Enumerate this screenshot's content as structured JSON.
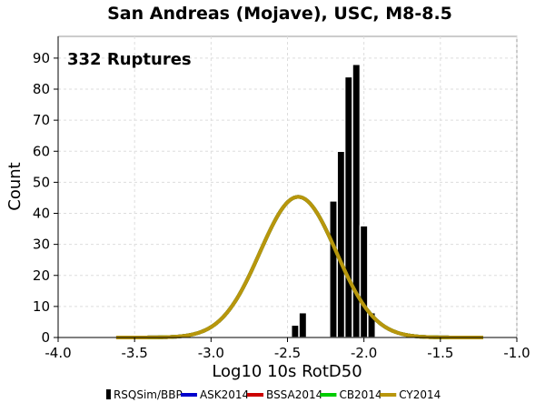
{
  "chart_data": {
    "type": "bar",
    "title": "San Andreas (Mojave), USC, M8-8.5",
    "xlabel": "Log10 10s RotD50",
    "ylabel": "Count",
    "xlim": [
      -4.0,
      -1.0
    ],
    "ylim": [
      0,
      97
    ],
    "x_ticks": [
      "-4.0",
      "-3.5",
      "-3.0",
      "-2.5",
      "-2.0",
      "-1.5",
      "-1.0"
    ],
    "x_tick_values": [
      -4.0,
      -3.5,
      -3.0,
      -2.5,
      -2.0,
      -1.5,
      -1.0
    ],
    "y_ticks": [
      "0",
      "10",
      "20",
      "30",
      "40",
      "50",
      "60",
      "70",
      "80",
      "90"
    ],
    "y_tick_values": [
      0,
      10,
      20,
      30,
      40,
      50,
      60,
      70,
      80,
      90
    ],
    "grid": true,
    "annotation": "332 Ruptures",
    "histogram": {
      "name": "RSQSim/BBP",
      "color": "#000000",
      "bin_width": 0.05,
      "bin_centers": [
        -2.45,
        -2.4,
        -2.35,
        -2.3,
        -2.25,
        -2.2,
        -2.15,
        -2.1,
        -2.05,
        -2.0,
        -1.95,
        -1.9,
        -1.85,
        -1.8,
        -1.75
      ],
      "values": [
        4,
        8,
        0,
        0,
        0,
        44,
        60,
        84,
        88,
        36,
        8,
        0,
        0,
        0,
        0
      ]
    },
    "series": [
      {
        "name": "ASK2014",
        "color": "#0000cc",
        "type": "line",
        "mean": -2.43,
        "sigma": 0.25,
        "peak": 45.3,
        "x_range": [
          -3.62,
          -1.22
        ]
      },
      {
        "name": "BSSA2014",
        "color": "#cc0000",
        "type": "line",
        "mean": -2.43,
        "sigma": 0.25,
        "peak": 45.3,
        "x_range": [
          -3.62,
          -1.22
        ]
      },
      {
        "name": "CB2014",
        "color": "#00cc00",
        "type": "line",
        "mean": -2.43,
        "sigma": 0.25,
        "peak": 45.3,
        "x_range": [
          -3.62,
          -1.22
        ]
      },
      {
        "name": "CY2014",
        "color": "#b8960c",
        "type": "line",
        "mean": -2.43,
        "sigma": 0.25,
        "peak": 45.3,
        "x_range": [
          -3.62,
          -1.22
        ]
      }
    ],
    "legend_position": "bottom",
    "legend": [
      "RSQSim/BBP",
      "ASK2014",
      "BSSA2014",
      "CB2014",
      "CY2014"
    ]
  }
}
